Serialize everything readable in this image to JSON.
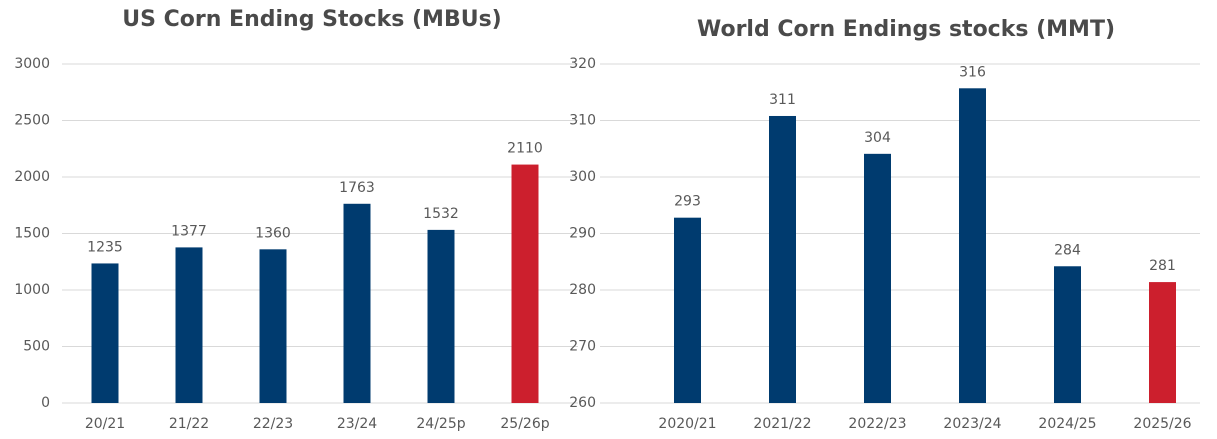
{
  "chart_data": [
    {
      "type": "bar",
      "title": "US Corn Ending Stocks (MBUs)",
      "categories": [
        "20/21",
        "21/22",
        "22/23",
        "23/24",
        "24/25p",
        "25/26p"
      ],
      "values": [
        1235,
        1377,
        1360,
        1763,
        1532,
        2110
      ],
      "colors": [
        "#003b6f",
        "#003b6f",
        "#003b6f",
        "#003b6f",
        "#003b6f",
        "#cc1f2d"
      ],
      "ylim": [
        0,
        3000
      ],
      "yticks": [
        0,
        500,
        1000,
        1500,
        2000,
        2500,
        3000
      ],
      "grid": true
    },
    {
      "type": "bar",
      "title": "World Corn Endings stocks (MMT)",
      "categories": [
        "2020/21",
        "2021/22",
        "2022/23",
        "2023/24",
        "2024/25",
        "2025/26"
      ],
      "values": [
        292.8,
        310.8,
        304.1,
        315.7,
        284.2,
        281.4
      ],
      "value_labels": [
        "293",
        "311",
        "304",
        "316",
        "284",
        "281"
      ],
      "colors": [
        "#003b6f",
        "#003b6f",
        "#003b6f",
        "#003b6f",
        "#003b6f",
        "#cc1f2d"
      ],
      "ylim": [
        260,
        320
      ],
      "yticks": [
        260,
        270,
        280,
        290,
        300,
        310,
        320
      ],
      "grid": true
    }
  ]
}
